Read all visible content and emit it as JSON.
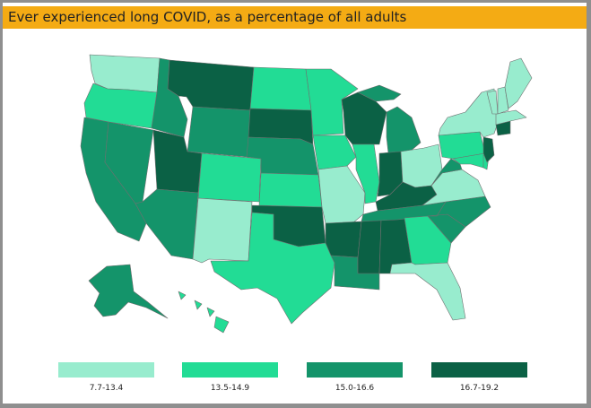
{
  "title": "Ever experienced long COVID, as a percentage of all adults",
  "legend": [
    {
      "label": "7.7-13.4",
      "color": "#98ecce"
    },
    {
      "label": "13.5-14.9",
      "color": "#22dc95"
    },
    {
      "label": "15.0-16.6",
      "color": "#14946a"
    },
    {
      "label": "16.7-19.2",
      "color": "#0b6145"
    }
  ],
  "state_bins": {
    "WA": 0,
    "OR": 1,
    "CA": 2,
    "NV": 2,
    "ID": 2,
    "MT": 3,
    "WY": 2,
    "UT": 3,
    "AZ": 2,
    "CO": 1,
    "NM": 0,
    "ND": 1,
    "SD": 3,
    "NE": 2,
    "KS": 1,
    "OK": 3,
    "TX": 1,
    "MN": 1,
    "IA": 1,
    "MO": 0,
    "AR": 3,
    "LA": 2,
    "WI": 3,
    "IL": 1,
    "MS": 3,
    "AL": 3,
    "MI": 2,
    "IN": 3,
    "KY": 3,
    "TN": 2,
    "GA": 1,
    "FL": 0,
    "OH": 0,
    "WV": 2,
    "VA": 0,
    "NC": 2,
    "SC": 2,
    "PA": 1,
    "NY": 0,
    "ME": 0,
    "VT": 0,
    "NH": 0,
    "MA": 0,
    "CT": 3,
    "NJ": 3,
    "MD": 1,
    "DE": 1,
    "AK": 2,
    "HI": 1
  }
}
